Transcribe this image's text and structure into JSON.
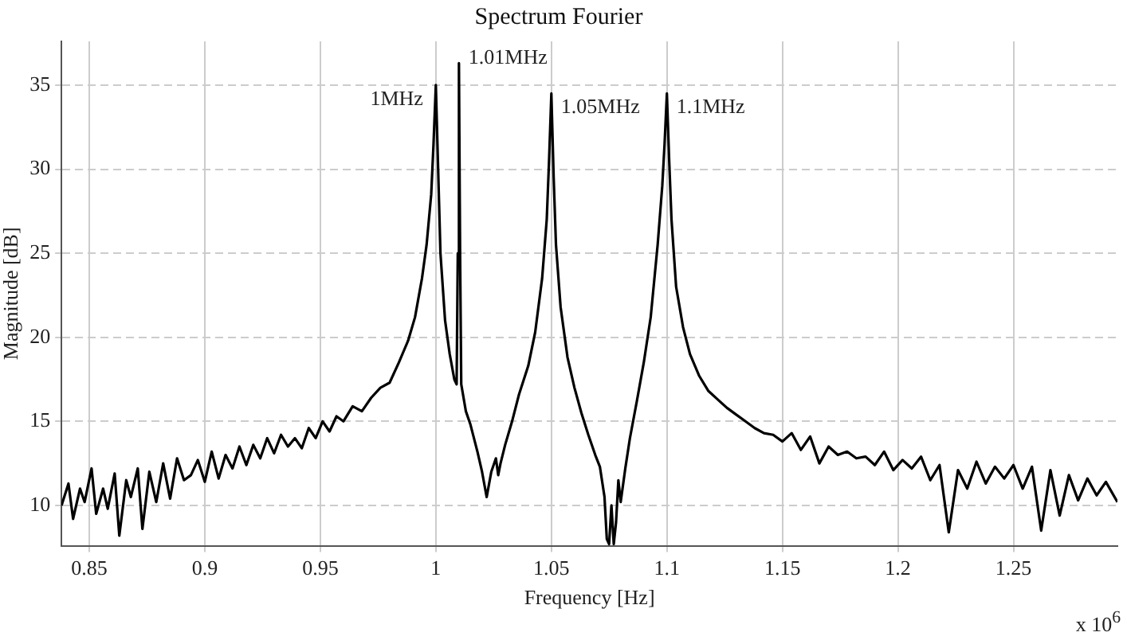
{
  "chart_data": {
    "type": "line",
    "title": "Spectrum Fourier",
    "xlabel": "Frequency [Hz]",
    "ylabel": "Magnitude [dB]",
    "annotations": [
      {
        "text": "1MHz",
        "x": 1,
        "y": 35
      },
      {
        "text": "1.01MHz",
        "x": 1.01,
        "y": 36.3
      },
      {
        "text": "1.05MHz",
        "x": 1.05,
        "y": 34.5
      },
      {
        "text": "1.1MHz",
        "x": 1.1,
        "y": 34.5
      },
      "x 10$^{6}$"
    ],
    "xlim": [
      0.838,
      1.295
    ],
    "xticks": [
      0.85,
      0.9,
      0.95,
      1,
      1.05,
      1.1,
      1.15,
      1.2,
      1.25
    ],
    "ylim": [
      7.6,
      37.6
    ],
    "yticks": [
      10,
      15,
      20,
      25,
      30,
      35
    ],
    "grid": true,
    "legend": false,
    "marker": "none",
    "line_style": "solid",
    "series": [
      {
        "color": "#000000",
        "x": [
          0.838,
          0.841,
          0.843,
          0.846,
          0.848,
          0.851,
          0.853,
          0.856,
          0.858,
          0.861,
          0.863,
          0.866,
          0.868,
          0.871,
          0.873,
          0.876,
          0.879,
          0.882,
          0.885,
          0.888,
          0.891,
          0.894,
          0.897,
          0.9,
          0.903,
          0.906,
          0.909,
          0.912,
          0.915,
          0.918,
          0.921,
          0.924,
          0.927,
          0.93,
          0.933,
          0.936,
          0.939,
          0.942,
          0.945,
          0.948,
          0.951,
          0.954,
          0.957,
          0.96,
          0.964,
          0.968,
          0.972,
          0.976,
          0.98,
          0.984,
          0.988,
          0.991,
          0.994,
          0.996,
          0.998,
          0.999,
          1.0,
          1.001,
          1.002,
          1.004,
          1.006,
          1.008,
          1.009,
          1.0095,
          1.01,
          1.0105,
          1.011,
          1.013,
          1.015,
          1.018,
          1.02,
          1.022,
          1.024,
          1.026,
          1.027,
          1.028,
          1.03,
          1.033,
          1.036,
          1.04,
          1.043,
          1.046,
          1.048,
          1.049,
          1.05,
          1.051,
          1.052,
          1.054,
          1.057,
          1.06,
          1.063,
          1.066,
          1.069,
          1.071,
          1.073,
          1.074,
          1.075,
          1.076,
          1.077,
          1.078,
          1.079,
          1.08,
          1.082,
          1.084,
          1.087,
          1.09,
          1.093,
          1.096,
          1.098,
          1.099,
          1.1,
          1.101,
          1.102,
          1.104,
          1.107,
          1.11,
          1.114,
          1.118,
          1.122,
          1.126,
          1.13,
          1.134,
          1.138,
          1.142,
          1.146,
          1.15,
          1.154,
          1.158,
          1.162,
          1.166,
          1.17,
          1.174,
          1.178,
          1.182,
          1.186,
          1.19,
          1.194,
          1.198,
          1.202,
          1.206,
          1.21,
          1.214,
          1.218,
          1.222,
          1.226,
          1.23,
          1.234,
          1.238,
          1.242,
          1.246,
          1.25,
          1.254,
          1.258,
          1.262,
          1.266,
          1.27,
          1.274,
          1.278,
          1.282,
          1.286,
          1.29,
          1.295
        ],
        "values": [
          10.0,
          11.3,
          9.2,
          11.0,
          10.2,
          12.2,
          9.5,
          11.0,
          9.8,
          11.9,
          8.2,
          11.5,
          10.5,
          12.2,
          8.6,
          12.0,
          10.2,
          12.5,
          10.4,
          12.8,
          11.5,
          11.8,
          12.7,
          11.4,
          13.2,
          11.6,
          13.0,
          12.2,
          13.5,
          12.4,
          13.6,
          12.8,
          14.0,
          13.1,
          14.2,
          13.5,
          14.0,
          13.4,
          14.6,
          14.0,
          15.0,
          14.4,
          15.3,
          15.0,
          15.9,
          15.6,
          16.4,
          17.0,
          17.3,
          18.5,
          19.8,
          21.2,
          23.5,
          25.5,
          28.5,
          31.5,
          35.0,
          30.0,
          25.0,
          21.0,
          19.0,
          17.5,
          17.2,
          25.0,
          36.3,
          25.0,
          17.2,
          15.6,
          14.8,
          13.2,
          12.0,
          10.5,
          12.0,
          12.8,
          11.8,
          12.5,
          13.6,
          15.0,
          16.6,
          18.3,
          20.3,
          23.5,
          27.0,
          30.5,
          34.5,
          29.5,
          25.5,
          21.8,
          18.8,
          17.0,
          15.5,
          14.2,
          13.0,
          12.3,
          10.5,
          8.0,
          7.7,
          10.0,
          7.7,
          9.0,
          11.5,
          10.2,
          12.2,
          14.0,
          16.2,
          18.5,
          21.2,
          25.5,
          29.0,
          31.5,
          34.5,
          30.5,
          27.0,
          23.0,
          20.6,
          19.0,
          17.7,
          16.8,
          16.3,
          15.8,
          15.4,
          15.0,
          14.6,
          14.3,
          14.2,
          13.8,
          14.3,
          13.3,
          14.1,
          12.5,
          13.5,
          13.0,
          13.2,
          12.8,
          12.9,
          12.4,
          13.2,
          12.1,
          12.7,
          12.2,
          12.9,
          11.5,
          12.4,
          8.4,
          12.1,
          11.0,
          12.6,
          11.3,
          12.3,
          11.6,
          12.4,
          11.0,
          12.3,
          8.5,
          12.1,
          9.4,
          11.8,
          10.3,
          11.6,
          10.6,
          11.4,
          10.2
        ]
      }
    ]
  }
}
